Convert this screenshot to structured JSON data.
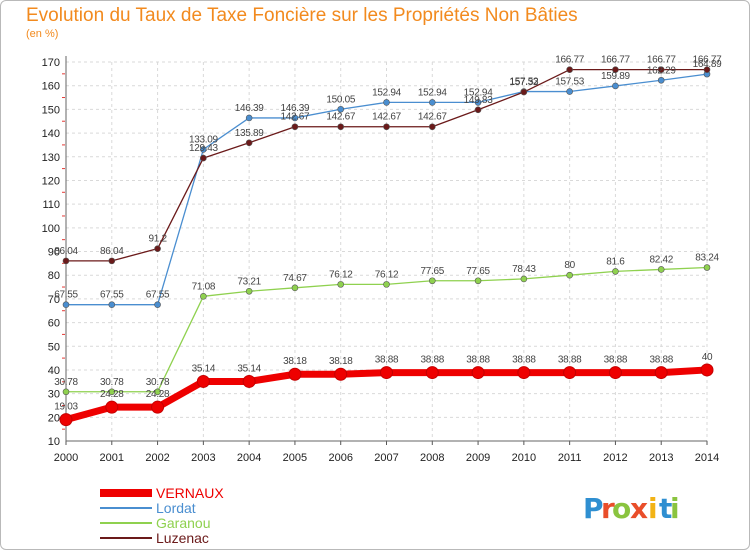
{
  "header": {
    "title": "Evolution du Taux de Taxe Foncière sur les Propriétés Non Bâties",
    "unit": "(en %)"
  },
  "logo": {
    "letters": [
      "P",
      "r",
      "o",
      "x",
      "i",
      "t",
      "i"
    ],
    "colors": [
      "#2f8fd1",
      "#e94e2a",
      "#8ac43f",
      "#e94e2a",
      "#f2b316",
      "#2f8fd1",
      "#8ac43f"
    ]
  },
  "chart_data": {
    "type": "line",
    "title": "Evolution du Taux de Taxe Foncière sur les Propriétés Non Bâties",
    "ylabel": "(en %)",
    "xlabel": "",
    "x": [
      2000,
      2001,
      2002,
      2003,
      2004,
      2005,
      2006,
      2007,
      2008,
      2009,
      2010,
      2011,
      2012,
      2013,
      2014
    ],
    "ylim": [
      10,
      170
    ],
    "yticks": [
      10,
      20,
      30,
      40,
      50,
      60,
      70,
      80,
      90,
      100,
      110,
      120,
      130,
      140,
      150,
      160,
      170
    ],
    "grid": true,
    "legend": "bottom-left",
    "series": [
      {
        "name": "VERNAUX",
        "color": "#ee0000",
        "values": [
          19.03,
          24.28,
          24.28,
          35.14,
          35.14,
          38.18,
          38.18,
          38.88,
          38.88,
          38.88,
          38.88,
          38.88,
          38.88,
          38.88,
          40
        ],
        "labels": [
          "19.03",
          "24.28",
          "24.28",
          "35.14",
          "35.14",
          "38.18",
          "38.18",
          "38.88",
          "38.88",
          "38.88",
          "38.88",
          "38.88",
          "38.88",
          "38.88",
          "40"
        ]
      },
      {
        "name": "Lordat",
        "color": "#4a8ed0",
        "values": [
          67.55,
          67.55,
          67.55,
          133.09,
          146.39,
          146.39,
          150.05,
          152.94,
          152.94,
          152.94,
          157.53,
          157.53,
          159.89,
          162.29,
          164.89
        ],
        "labels": [
          "67.55",
          "67.55",
          "67.55",
          "133.09",
          "146.39",
          "146.39",
          "150.05",
          "152.94",
          "152.94",
          "152.94",
          "157.53",
          "157.53",
          "159.89",
          "162.29",
          "164.89"
        ]
      },
      {
        "name": "Garanou",
        "color": "#8fd14f",
        "values": [
          30.78,
          30.78,
          30.78,
          71.08,
          73.21,
          74.67,
          76.12,
          76.12,
          77.65,
          77.65,
          78.43,
          80,
          81.6,
          82.42,
          83.24
        ],
        "labels": [
          "30.78",
          "30.78",
          "30.78",
          "71.08",
          "73.21",
          "74.67",
          "76.12",
          "76.12",
          "77.65",
          "77.65",
          "78.43",
          "80",
          "81.6",
          "82.42",
          "83.24"
        ]
      },
      {
        "name": "Luzenac",
        "color": "#6b1a1a",
        "values": [
          86.04,
          86.04,
          91.2,
          129.43,
          135.89,
          142.67,
          142.67,
          142.67,
          142.67,
          149.83,
          157.32,
          166.77,
          166.77,
          166.77,
          166.77
        ],
        "labels": [
          "86.04",
          "86.04",
          "91.2",
          "129.43",
          "135.89",
          "142.67",
          "142.67",
          "142.67",
          "142.67",
          "149.83",
          "157.32",
          "166.77",
          "166.77",
          "166.77",
          "166.77"
        ]
      }
    ]
  }
}
